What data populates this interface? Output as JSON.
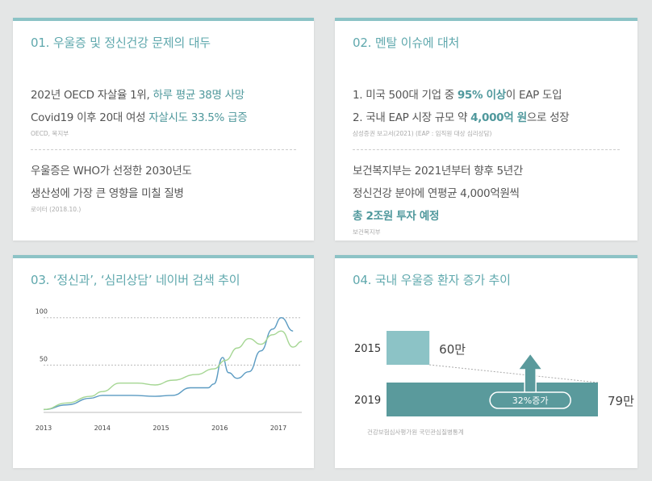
{
  "card1": {
    "title": "01. 우울증 및 정신건강 문제의 대두",
    "line1": {
      "pre": "202년 OECD 자살율 1위, ",
      "highlight": "하루 평균 38명 사망"
    },
    "line2": {
      "pre": "Covid19 이후 20대  여성 ",
      "highlight": "자살시도 33.5% 급증"
    },
    "source1": "OECD, 복지부",
    "line3": "우울증은 WHO가 선정한 2030년도",
    "line4": "생산성에 가장 큰 영향을 미칠 질병",
    "source2": "로이터 (2018.10.)"
  },
  "card2": {
    "title": "02. 멘탈 이슈에 대처",
    "line1": {
      "pre": "1. 미국 500대 기업 중 ",
      "highlight": "95% 이상",
      "post": "이 EAP 도입"
    },
    "line2": {
      "pre": "2. 국내 EAP 시장 규모 약 ",
      "highlight": "4,000억 원",
      "post": "으로 성장"
    },
    "source1": "삼성증권 보고서(2021) (EAP : 임직원 대상 심리상담)",
    "line3": "보건복지부는 2021년부터 향후 5년간",
    "line4": "정신건강 분야에 연평균 4,000억원씩",
    "line5": "총 2조원 투자 예정",
    "source2": "보건복지부"
  },
  "card3": {
    "title": "03. ‘정신과’, ‘심리상담’ 네이버 검색 추이"
  },
  "card4": {
    "title": "04. 국내 우울증 환자 증가 추이",
    "source": "건강보험심사평가원 국민관심질병통계"
  },
  "colors": {
    "accent": "#5fa8ad",
    "highlight": "#4f989c",
    "bar2015": "#8cc3c6",
    "bar2019": "#5a9a9c",
    "line_blue": "#5b9bc2",
    "line_green": "#a5d693"
  },
  "chart_data": [
    {
      "type": "line",
      "title": "",
      "x_ticks": [
        "2013",
        "2014",
        "2015",
        "2016",
        "2017"
      ],
      "y_ticks": [
        50,
        100
      ],
      "ylim": [
        0,
        110
      ],
      "xlim": [
        2013,
        2017.4
      ],
      "grid": "horizontal dotted",
      "series": [
        {
          "color": "#5b9bc2",
          "x": [
            2013,
            2013.4,
            2013.8,
            2014,
            2014.5,
            2014.9,
            2015.2,
            2015.5,
            2015.8,
            2015.9,
            2016.05,
            2016.15,
            2016.3,
            2016.5,
            2016.7,
            2016.9,
            2017.05,
            2017.25
          ],
          "y": [
            3,
            8,
            15,
            18,
            18,
            17,
            18,
            26,
            26,
            30,
            58,
            42,
            36,
            43,
            65,
            88,
            100,
            86
          ]
        },
        {
          "color": "#a5d693",
          "x": [
            2013,
            2013.4,
            2013.8,
            2014,
            2014.3,
            2014.6,
            2014.9,
            2015.2,
            2015.6,
            2015.9,
            2016.1,
            2016.3,
            2016.5,
            2016.7,
            2016.9,
            2017.05,
            2017.25,
            2017.4
          ],
          "y": [
            3,
            10,
            17,
            22,
            31,
            31,
            29,
            34,
            40,
            46,
            55,
            68,
            78,
            72,
            82,
            86,
            69,
            75
          ]
        }
      ]
    },
    {
      "type": "bar",
      "title": "",
      "categories": [
        "2015",
        "2019"
      ],
      "values": [
        60,
        79
      ],
      "value_labels": [
        "60만",
        "79만"
      ],
      "annotation": "32%증가"
    }
  ]
}
